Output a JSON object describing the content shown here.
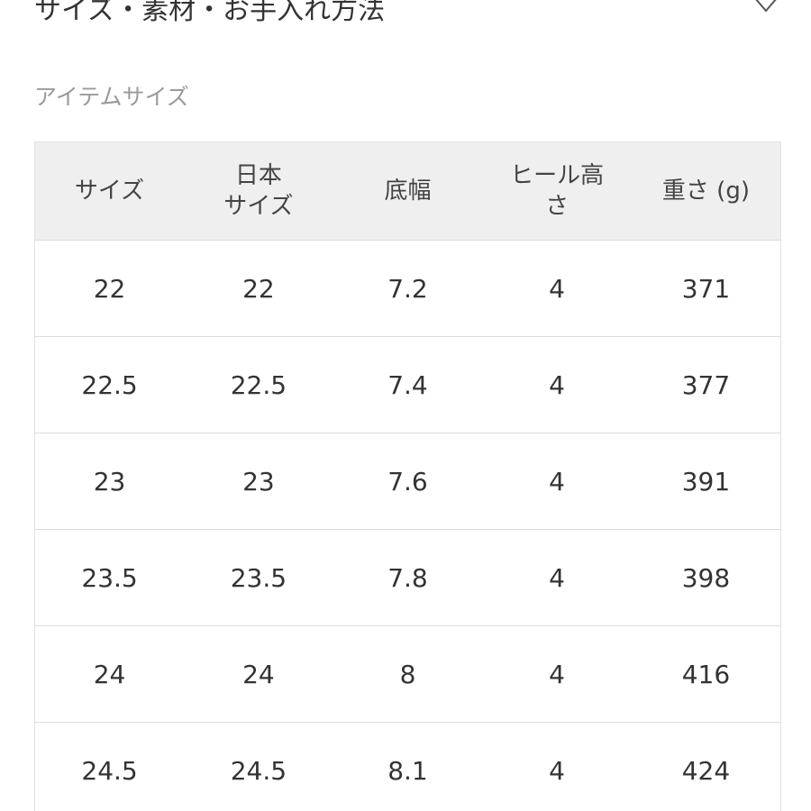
{
  "section": {
    "title": "サイズ・素材・お手入れ方法",
    "toggle_icon": "chevron-down-icon"
  },
  "subheading": "アイテムサイズ",
  "table": {
    "headers": [
      [
        "サイズ"
      ],
      [
        "日本",
        "サイズ"
      ],
      [
        "底幅"
      ],
      [
        "ヒール高",
        "さ"
      ],
      [
        "重さ (g)"
      ]
    ],
    "rows": [
      [
        "22",
        "22",
        "7.2",
        "4",
        "371"
      ],
      [
        "22.5",
        "22.5",
        "7.4",
        "4",
        "377"
      ],
      [
        "23",
        "23",
        "7.6",
        "4",
        "391"
      ],
      [
        "23.5",
        "23.5",
        "7.8",
        "4",
        "398"
      ],
      [
        "24",
        "24",
        "8",
        "4",
        "416"
      ],
      [
        "24.5",
        "24.5",
        "8.1",
        "4",
        "424"
      ]
    ]
  }
}
